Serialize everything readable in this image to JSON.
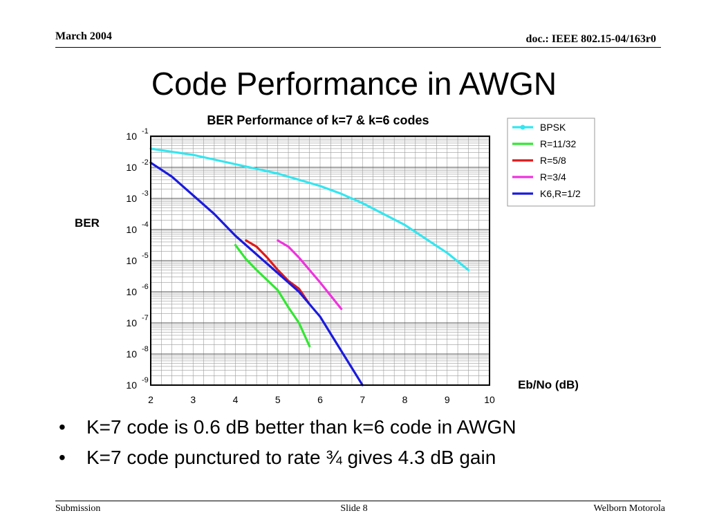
{
  "header": {
    "date": "March 2004",
    "doc": "doc.: IEEE 802.15-04/163r0"
  },
  "title": "Code Performance in AWGN",
  "bullets": [
    {
      "marker": "•",
      "text": "K=7 code is 0.6 dB better than k=6 code in AWGN"
    },
    {
      "marker": "•",
      "text": "K=7 code punctured to rate ¾ gives 4.3 dB gain"
    }
  ],
  "footer": {
    "left": "Submission",
    "center": "Slide 8",
    "right": "Welborn Motorola"
  },
  "chart_data": {
    "type": "line",
    "title": "BER Performance of k=7 & k=6 codes",
    "xlabel": "Eb/No (dB)",
    "ylabel": "BER",
    "xlim": [
      2,
      10
    ],
    "y_scale": "log",
    "ylim": [
      -9,
      -1
    ],
    "x_ticks": [
      2,
      3,
      4,
      5,
      6,
      7,
      8,
      9,
      10
    ],
    "y_ticks": [
      {
        "base": "10",
        "exp": "-1",
        "value": -1
      },
      {
        "base": "10",
        "exp": "-2",
        "value": -2
      },
      {
        "base": "10",
        "exp": "-3",
        "value": -3
      },
      {
        "base": "10",
        "exp": "-4",
        "value": -4
      },
      {
        "base": "10",
        "exp": "-5",
        "value": -5
      },
      {
        "base": "10",
        "exp": "-6",
        "value": -6
      },
      {
        "base": "10",
        "exp": "-7",
        "value": -7
      },
      {
        "base": "10",
        "exp": "-8",
        "value": -8
      },
      {
        "base": "10",
        "exp": "-9",
        "value": -9
      }
    ],
    "grid": true,
    "legend_position": "right",
    "series": [
      {
        "name": "BPSK",
        "color": "#33e6f0",
        "marker": "circle",
        "x": [
          2,
          3,
          4,
          5,
          6,
          6.5,
          7,
          8,
          9,
          9.5
        ],
        "y": [
          -1.4,
          -1.6,
          -1.9,
          -2.2,
          -2.6,
          -2.85,
          -3.15,
          -3.85,
          -4.75,
          -5.3
        ]
      },
      {
        "name": "R=11/32",
        "color": "#33e633",
        "x": [
          4,
          4.25,
          4.5,
          5,
          5.25,
          5.5,
          5.75
        ],
        "y": [
          -4.5,
          -4.95,
          -5.3,
          -5.95,
          -6.5,
          -7.0,
          -7.75
        ]
      },
      {
        "name": "R=5/8",
        "color": "#dd1a1a",
        "x": [
          4.25,
          4.5,
          4.75,
          5,
          5.25,
          5.5,
          5.75
        ],
        "y": [
          -4.35,
          -4.55,
          -4.9,
          -5.3,
          -5.65,
          -5.9,
          -6.4
        ]
      },
      {
        "name": "R=3/4",
        "color": "#ee33dd",
        "x": [
          5,
          5.25,
          5.5,
          6,
          6.5
        ],
        "y": [
          -4.35,
          -4.55,
          -4.9,
          -5.7,
          -6.55
        ]
      },
      {
        "name": "K6,R=1/2",
        "color": "#1a1adf",
        "x": [
          2,
          2.5,
          3,
          3.5,
          4,
          4.5,
          5,
          5.5,
          6,
          6.5,
          7
        ],
        "y": [
          -1.85,
          -2.3,
          -2.9,
          -3.5,
          -4.2,
          -4.8,
          -5.4,
          -6.0,
          -6.8,
          -7.9,
          -9.0
        ]
      }
    ]
  }
}
